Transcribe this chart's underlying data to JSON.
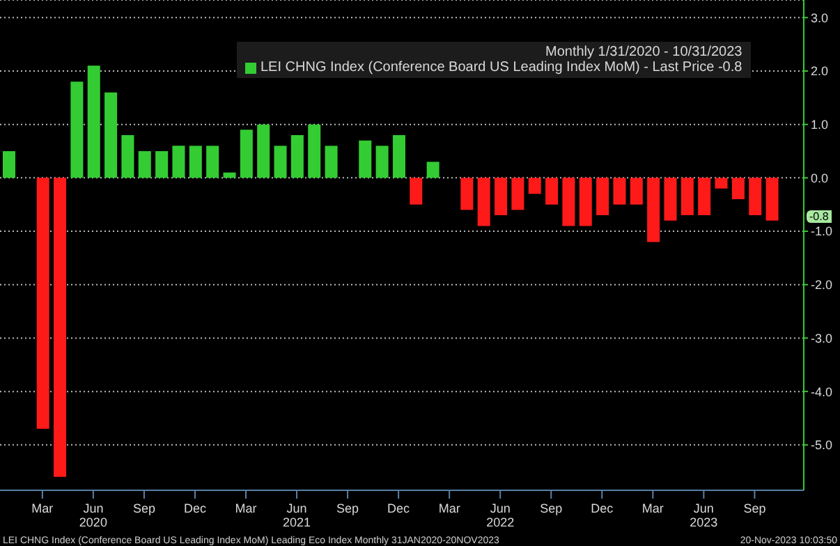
{
  "chart_data": {
    "type": "bar",
    "title": "Monthly 1/31/2020 - 10/31/2023",
    "x": [
      "2020-01",
      "2020-02",
      "2020-03",
      "2020-04",
      "2020-05",
      "2020-06",
      "2020-07",
      "2020-08",
      "2020-09",
      "2020-10",
      "2020-11",
      "2020-12",
      "2021-01",
      "2021-02",
      "2021-03",
      "2021-04",
      "2021-05",
      "2021-06",
      "2021-07",
      "2021-08",
      "2021-09",
      "2021-10",
      "2021-11",
      "2021-12",
      "2022-01",
      "2022-02",
      "2022-03",
      "2022-04",
      "2022-05",
      "2022-06",
      "2022-07",
      "2022-08",
      "2022-09",
      "2022-10",
      "2022-11",
      "2022-12",
      "2023-01",
      "2023-02",
      "2023-03",
      "2023-04",
      "2023-05",
      "2023-06",
      "2023-07",
      "2023-08",
      "2023-09",
      "2023-10"
    ],
    "series": [
      {
        "name": "LEI CHNG Index (Conference Board US Leading Index MoM) - Last Price -0.8",
        "values": [
          0.5,
          0,
          -4.7,
          -5.6,
          1.8,
          2.1,
          1.6,
          0.8,
          0.5,
          0.5,
          0.6,
          0.6,
          0.6,
          0.1,
          0.9,
          1.0,
          0.6,
          0.8,
          1.0,
          0.6,
          0,
          0.7,
          0.6,
          0.8,
          -0.5,
          0.3,
          0,
          -0.6,
          -0.9,
          -0.7,
          -0.6,
          -0.3,
          -0.5,
          -0.9,
          -0.9,
          -0.7,
          -0.5,
          -0.5,
          -1.2,
          -0.8,
          -0.7,
          -0.7,
          -0.2,
          -0.4,
          -0.7,
          -0.8
        ],
        "colors": [
          "#33cc33",
          "#33cc33",
          "#ff1a1a",
          "#ff1a1a",
          "#33cc33",
          "#33cc33",
          "#33cc33",
          "#33cc33",
          "#33cc33",
          "#33cc33",
          "#33cc33",
          "#33cc33",
          "#33cc33",
          "#33cc33",
          "#33cc33",
          "#33cc33",
          "#33cc33",
          "#33cc33",
          "#33cc33",
          "#33cc33",
          "#33cc33",
          "#33cc33",
          "#33cc33",
          "#33cc33",
          "#ff1a1a",
          "#33cc33",
          "#33cc33",
          "#ff1a1a",
          "#ff1a1a",
          "#ff1a1a",
          "#ff1a1a",
          "#ff1a1a",
          "#ff1a1a",
          "#ff1a1a",
          "#ff1a1a",
          "#ff1a1a",
          "#ff1a1a",
          "#ff1a1a",
          "#ff1a1a",
          "#ff1a1a",
          "#ff1a1a",
          "#ff1a1a",
          "#ff1a1a",
          "#ff1a1a",
          "#ff1a1a",
          "#ff1a1a"
        ]
      }
    ],
    "xlim": [
      "2019-12-16",
      "2023-11-28"
    ],
    "xticks": [
      {
        "value": "2020-03",
        "label": "Mar"
      },
      {
        "value": "2020-06",
        "label": "Jun\n2020"
      },
      {
        "value": "2020-09",
        "label": "Sep"
      },
      {
        "value": "2020-12",
        "label": "Dec"
      },
      {
        "value": "2021-03",
        "label": "Mar"
      },
      {
        "value": "2021-06",
        "label": "Jun\n2021"
      },
      {
        "value": "2021-09",
        "label": "Sep"
      },
      {
        "value": "2021-12",
        "label": "Dec"
      },
      {
        "value": "2022-03",
        "label": "Mar"
      },
      {
        "value": "2022-06",
        "label": "Jun\n2022"
      },
      {
        "value": "2022-09",
        "label": "Sep"
      },
      {
        "value": "2022-12",
        "label": "Dec"
      },
      {
        "value": "2023-03",
        "label": "Mar"
      },
      {
        "value": "2023-06",
        "label": "Jun\n2023"
      },
      {
        "value": "2023-09",
        "label": "Sep"
      }
    ],
    "ylim": [
      -5.85,
      3.33
    ],
    "yticks": [
      {
        "value": -5,
        "label": "-5.0"
      },
      {
        "value": -4,
        "label": "-4.0"
      },
      {
        "value": -3,
        "label": "-3.0"
      },
      {
        "value": -2,
        "label": "-2.0"
      },
      {
        "value": -1,
        "label": "-1.0"
      },
      {
        "value": 0,
        "label": "0.0"
      },
      {
        "value": 1,
        "label": "1.0"
      },
      {
        "value": 2,
        "label": "2.0"
      },
      {
        "value": 3,
        "label": "3.0"
      }
    ],
    "grid": "y",
    "legend": "top",
    "annotations": [
      "-0.8",
      "LEI CHNG Index (Conference Board US Leading Index MoM) Leading Eco Index  Monthly 31JAN2020-20NOV2023",
      "20-Nov-2023 10:03:50"
    ]
  }
}
